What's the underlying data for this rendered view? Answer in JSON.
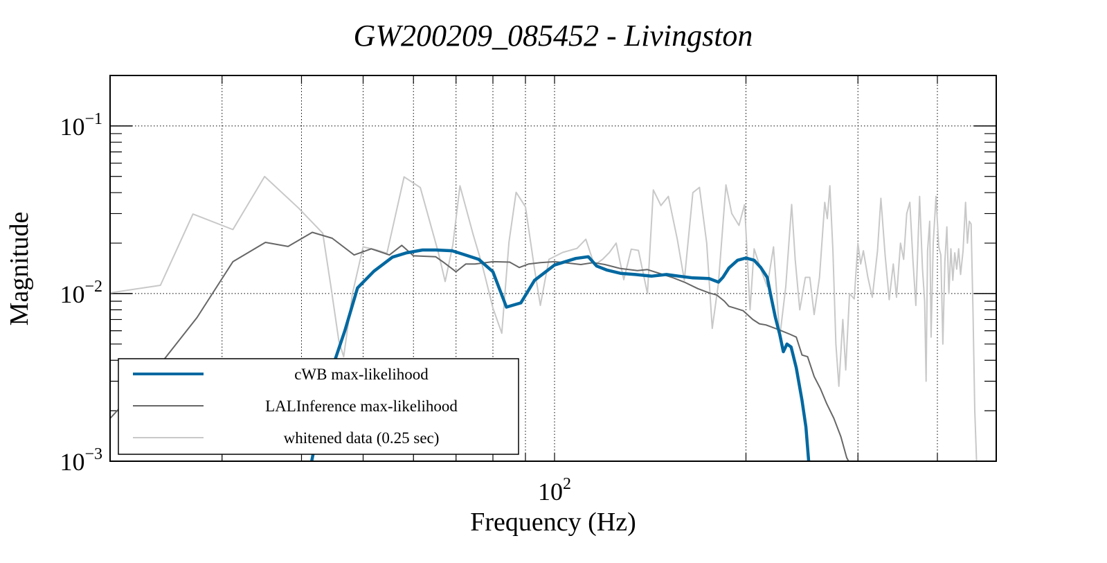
{
  "chart_data": {
    "type": "line",
    "title": "GW200209_085452 - Livingston",
    "xlabel": "Frequency (Hz)",
    "ylabel": "Magnitude",
    "xscale": "log",
    "yscale": "log",
    "xlim": [
      20,
      495
    ],
    "ylim": [
      0.001,
      0.2
    ],
    "grid": true,
    "x_major_ticks": [
      {
        "value": 100,
        "base": "10",
        "exp": "2"
      }
    ],
    "x_minor_gridlines": [
      30,
      40,
      50,
      60,
      70,
      80,
      90,
      200,
      300,
      400
    ],
    "y_major_ticks": [
      {
        "value": 0.1,
        "base": "10",
        "exp": "−1"
      },
      {
        "value": 0.01,
        "base": "10",
        "exp": "−2"
      },
      {
        "value": 0.001,
        "base": "10",
        "exp": "−3"
      }
    ],
    "legend": {
      "position": "lower-left",
      "entries": [
        "cWB max-likelihood",
        "LALInference max-likelihood",
        "whitened data (0.25 sec)"
      ]
    },
    "series": [
      {
        "name": "whitened data (0.25 sec)",
        "color": "#c8c8c8",
        "points": [
          [
            20.0,
            0.0101
          ],
          [
            24.0,
            0.0112
          ],
          [
            27.0,
            0.0298
          ],
          [
            31.2,
            0.0241
          ],
          [
            35.0,
            0.0499
          ],
          [
            39.6,
            0.0323
          ],
          [
            43.2,
            0.0229
          ],
          [
            44.5,
            0.011
          ],
          [
            45.8,
            0.0052
          ],
          [
            46.6,
            0.0042
          ],
          [
            48.1,
            0.01
          ],
          [
            50.0,
            0.019
          ],
          [
            52.5,
            0.0182
          ],
          [
            54.5,
            0.0174
          ],
          [
            58.0,
            0.0497
          ],
          [
            61.5,
            0.0429
          ],
          [
            65.6,
            0.0178
          ],
          [
            67.3,
            0.0118
          ],
          [
            69.2,
            0.0195
          ],
          [
            71.0,
            0.044
          ],
          [
            74.5,
            0.0224
          ],
          [
            77.0,
            0.0147
          ],
          [
            80.0,
            0.0082
          ],
          [
            82.6,
            0.0058
          ],
          [
            84.8,
            0.0203
          ],
          [
            87.0,
            0.0402
          ],
          [
            90.0,
            0.0329
          ],
          [
            93.0,
            0.014
          ],
          [
            95.0,
            0.0085
          ],
          [
            98.0,
            0.016
          ],
          [
            103.0,
            0.0176
          ],
          [
            108.5,
            0.0186
          ],
          [
            112.0,
            0.0211
          ],
          [
            115.5,
            0.0148
          ],
          [
            119.0,
            0.016
          ],
          [
            122.0,
            0.0176
          ],
          [
            125.0,
            0.02
          ],
          [
            128.5,
            0.0121
          ],
          [
            132.0,
            0.0184
          ],
          [
            135.5,
            0.0181
          ],
          [
            140.0,
            0.01
          ],
          [
            143.0,
            0.0415
          ],
          [
            147.0,
            0.0335
          ],
          [
            151.0,
            0.038
          ],
          [
            156.0,
            0.021
          ],
          [
            160.0,
            0.012
          ],
          [
            165.0,
            0.04
          ],
          [
            169.0,
            0.043
          ],
          [
            173.5,
            0.02
          ],
          [
            177.0,
            0.0062
          ],
          [
            181.0,
            0.0115
          ],
          [
            186.0,
            0.0445
          ],
          [
            190.0,
            0.03
          ],
          [
            195.0,
            0.0255
          ],
          [
            199.0,
            0.034
          ],
          [
            203.0,
            0.008
          ],
          [
            206.0,
            0.0185
          ],
          [
            211.0,
            0.014
          ],
          [
            216.0,
            0.011
          ],
          [
            221.0,
            0.019
          ],
          [
            226.0,
            0.0055
          ],
          [
            231.0,
            0.011
          ],
          [
            236.0,
            0.034
          ],
          [
            239.0,
            0.016
          ],
          [
            243.0,
            0.008
          ],
          [
            248.0,
            0.0125
          ],
          [
            252.0,
            0.0125
          ],
          [
            256.0,
            0.0075
          ],
          [
            261.0,
            0.0125
          ],
          [
            266.0,
            0.035
          ],
          [
            268.5,
            0.028
          ],
          [
            271.0,
            0.044
          ],
          [
            274.0,
            0.018
          ],
          [
            277.0,
            0.005
          ],
          [
            280.0,
            0.0028
          ],
          [
            284.0,
            0.007
          ],
          [
            287.0,
            0.0035
          ],
          [
            291.0,
            0.01
          ],
          [
            296.0,
            0.0093
          ],
          [
            300.0,
            0.02
          ],
          [
            303.0,
            0.015
          ],
          [
            306.0,
            0.018
          ],
          [
            311.0,
            0.0125
          ],
          [
            316.0,
            0.0095
          ],
          [
            322.0,
            0.018
          ],
          [
            326.0,
            0.037
          ],
          [
            331.0,
            0.017
          ],
          [
            336.0,
            0.0092
          ],
          [
            341.0,
            0.015
          ],
          [
            345.0,
            0.0095
          ],
          [
            350.0,
            0.02
          ],
          [
            354.0,
            0.016
          ],
          [
            358.0,
            0.03
          ],
          [
            362.0,
            0.035
          ],
          [
            366.0,
            0.016
          ],
          [
            370.0,
            0.0085
          ],
          [
            375.0,
            0.038
          ],
          [
            379.0,
            0.014
          ],
          [
            382.0,
            0.009
          ],
          [
            384.0,
            0.003
          ],
          [
            386.0,
            0.018
          ],
          [
            389.0,
            0.027
          ],
          [
            391.0,
            0.0055
          ],
          [
            394.0,
            0.02
          ],
          [
            398.0,
            0.038
          ],
          [
            402.0,
            0.019
          ],
          [
            405.0,
            0.017
          ],
          [
            408.0,
            0.005
          ],
          [
            411.0,
            0.0155
          ],
          [
            414.0,
            0.025
          ],
          [
            417.0,
            0.01
          ],
          [
            420.0,
            0.0185
          ],
          [
            423.0,
            0.012
          ],
          [
            426.0,
            0.0175
          ],
          [
            429.0,
            0.014
          ],
          [
            432.0,
            0.0185
          ],
          [
            435.0,
            0.013
          ],
          [
            439.0,
            0.018
          ],
          [
            443.0,
            0.035
          ],
          [
            446.0,
            0.02
          ],
          [
            449.0,
            0.027
          ],
          [
            452.0,
            0.026
          ],
          [
            455.0,
            0.008
          ],
          [
            458.0,
            0.002
          ],
          [
            461.0,
            0.001
          ]
        ]
      },
      {
        "name": "LALInference max-likelihood",
        "color": "#666666",
        "points": [
          [
            20.0,
            0.0018
          ],
          [
            24.0,
            0.0038
          ],
          [
            27.4,
            0.0072
          ],
          [
            31.2,
            0.0155
          ],
          [
            35.1,
            0.0202
          ],
          [
            38.1,
            0.0191
          ],
          [
            41.6,
            0.0232
          ],
          [
            44.7,
            0.0214
          ],
          [
            48.4,
            0.017
          ],
          [
            51.5,
            0.0185
          ],
          [
            55.0,
            0.017
          ],
          [
            57.5,
            0.0194
          ],
          [
            60.0,
            0.0168
          ],
          [
            65.0,
            0.0166
          ],
          [
            67.0,
            0.0153
          ],
          [
            70.0,
            0.0135
          ],
          [
            72.5,
            0.015
          ],
          [
            75.0,
            0.015
          ],
          [
            80.0,
            0.0155
          ],
          [
            85.0,
            0.0154
          ],
          [
            88.0,
            0.0143
          ],
          [
            91.0,
            0.015
          ],
          [
            95.0,
            0.0153
          ],
          [
            100.0,
            0.0155
          ],
          [
            105.0,
            0.0152
          ],
          [
            110.0,
            0.0149
          ],
          [
            115.0,
            0.0153
          ],
          [
            120.0,
            0.0149
          ],
          [
            127.0,
            0.0141
          ],
          [
            135.0,
            0.0137
          ],
          [
            140.0,
            0.0139
          ],
          [
            147.0,
            0.0131
          ],
          [
            153.0,
            0.0125
          ],
          [
            160.0,
            0.0117
          ],
          [
            168.0,
            0.0107
          ],
          [
            175.0,
            0.0101
          ],
          [
            180.0,
            0.0098
          ],
          [
            185.0,
            0.009
          ],
          [
            188.0,
            0.0084
          ],
          [
            192.0,
            0.0082
          ],
          [
            198.0,
            0.0079
          ],
          [
            205.0,
            0.007
          ],
          [
            210.0,
            0.0066
          ],
          [
            215.0,
            0.0065
          ],
          [
            225.0,
            0.0061
          ],
          [
            235.0,
            0.0057
          ],
          [
            240.0,
            0.0055
          ],
          [
            245.0,
            0.0043
          ],
          [
            250.0,
            0.0042
          ],
          [
            256.0,
            0.0032
          ],
          [
            262.0,
            0.0027
          ],
          [
            268.0,
            0.0022
          ],
          [
            275.0,
            0.0018
          ],
          [
            282.0,
            0.0014
          ],
          [
            288.0,
            0.00105
          ],
          [
            290.0,
            0.001
          ]
        ]
      },
      {
        "name": "cWB max-likelihood",
        "color": "#0068a0",
        "points": [
          [
            41.5,
            0.001
          ],
          [
            44.0,
            0.003
          ],
          [
            46.8,
            0.006
          ],
          [
            49.0,
            0.0108
          ],
          [
            52.0,
            0.0136
          ],
          [
            55.6,
            0.0165
          ],
          [
            58.5,
            0.0175
          ],
          [
            62.0,
            0.0182
          ],
          [
            65.0,
            0.0182
          ],
          [
            69.0,
            0.018
          ],
          [
            72.0,
            0.0171
          ],
          [
            76.0,
            0.016
          ],
          [
            80.0,
            0.0135
          ],
          [
            84.0,
            0.0083
          ],
          [
            88.5,
            0.0088
          ],
          [
            93.0,
            0.012
          ],
          [
            100.0,
            0.0148
          ],
          [
            108.0,
            0.0162
          ],
          [
            113.0,
            0.0166
          ],
          [
            116.5,
            0.0146
          ],
          [
            121.0,
            0.0138
          ],
          [
            127.0,
            0.0132
          ],
          [
            134.0,
            0.013
          ],
          [
            142.0,
            0.0127
          ],
          [
            150.0,
            0.013
          ],
          [
            157.0,
            0.0127
          ],
          [
            165.0,
            0.0124
          ],
          [
            175.0,
            0.0123
          ],
          [
            181.0,
            0.0117
          ],
          [
            184.0,
            0.0125
          ],
          [
            188.0,
            0.0142
          ],
          [
            194.0,
            0.0158
          ],
          [
            200.0,
            0.0163
          ],
          [
            206.0,
            0.0158
          ],
          [
            211.0,
            0.0143
          ],
          [
            216.0,
            0.0125
          ],
          [
            218.5,
            0.01
          ],
          [
            222.5,
            0.0072
          ],
          [
            226.0,
            0.0057
          ],
          [
            229.0,
            0.0045
          ],
          [
            232.0,
            0.005
          ],
          [
            235.5,
            0.0048
          ],
          [
            240.0,
            0.0036
          ],
          [
            245.0,
            0.0023
          ],
          [
            248.5,
            0.0016
          ],
          [
            251.0,
            0.001
          ]
        ]
      }
    ]
  }
}
